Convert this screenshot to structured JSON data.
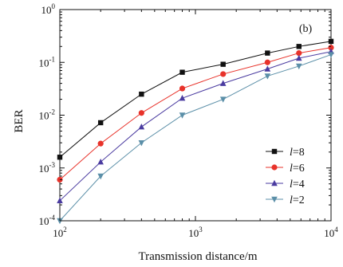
{
  "chart_data": {
    "type": "line",
    "panel_label": "(b)",
    "xlabel": "Transmission distance/m",
    "ylabel": "BER",
    "xscale": "log",
    "yscale": "log",
    "xlim": [
      100,
      10000
    ],
    "ylim": [
      0.0001,
      1
    ],
    "legend_position": "lower-right",
    "x_ticks": [
      {
        "value": 100,
        "base": "10",
        "exp": "2"
      },
      {
        "value": 1000,
        "base": "10",
        "exp": "3"
      },
      {
        "value": 10000,
        "base": "10",
        "exp": "4"
      }
    ],
    "y_ticks": [
      {
        "value": 0.0001,
        "base": "10",
        "exp": "-4"
      },
      {
        "value": 0.001,
        "base": "10",
        "exp": "-3"
      },
      {
        "value": 0.01,
        "base": "10",
        "exp": "-2"
      },
      {
        "value": 0.1,
        "base": "10",
        "exp": "-1"
      },
      {
        "value": 1,
        "base": "10",
        "exp": "0"
      }
    ],
    "series": [
      {
        "name": "l=8",
        "legend_var": "l",
        "legend_val": "=8",
        "color": "#111111",
        "marker": "square",
        "x": [
          100,
          200,
          400,
          800,
          1600,
          3400,
          5800,
          10000
        ],
        "y": [
          0.0016,
          0.0072,
          0.025,
          0.065,
          0.092,
          0.15,
          0.2,
          0.25
        ]
      },
      {
        "name": "l=6",
        "legend_var": "l",
        "legend_val": "=6",
        "color": "#e8322a",
        "marker": "circle",
        "x": [
          100,
          200,
          400,
          800,
          1600,
          3400,
          5800,
          10000
        ],
        "y": [
          0.0006,
          0.0029,
          0.011,
          0.032,
          0.06,
          0.1,
          0.15,
          0.19
        ]
      },
      {
        "name": "l=4",
        "legend_var": "l",
        "legend_val": "=4",
        "color": "#4a3ba0",
        "marker": "triangle-up",
        "x": [
          100,
          200,
          400,
          800,
          1600,
          3400,
          5800,
          10000
        ],
        "y": [
          0.00024,
          0.0013,
          0.006,
          0.021,
          0.04,
          0.075,
          0.12,
          0.16
        ]
      },
      {
        "name": "l=2",
        "legend_var": "l",
        "legend_val": "=2",
        "color": "#5b8fa8",
        "marker": "triangle-down",
        "x": [
          100,
          200,
          400,
          800,
          1600,
          3400,
          5800,
          10000
        ],
        "y": [
          0.0001,
          0.0007,
          0.003,
          0.01,
          0.02,
          0.055,
          0.085,
          0.14
        ]
      }
    ]
  }
}
